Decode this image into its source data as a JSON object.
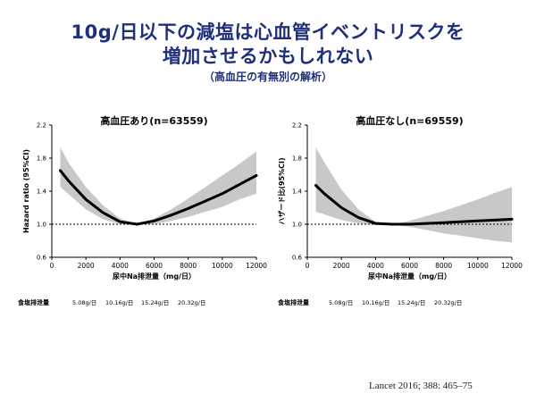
{
  "header": {
    "title_line1": "10g/日以下の減塩は心血管イベントリスクを",
    "title_line2": "増加させるかもしれない",
    "subtitle": "（高血圧の有無別の解析）"
  },
  "citation": "Lancet 2016; 388: 465–75",
  "colors": {
    "title": "#1f2f7a",
    "band": "#c8c8c8",
    "line": "#000000"
  },
  "chart_data": [
    {
      "type": "line",
      "title": "高血圧あり(n=63559)",
      "xlabel": "尿中Na排泄量（mg/日）",
      "ylabel": "Hazard ratio (95%CI)",
      "xlim": [
        0,
        12000
      ],
      "ylim": [
        0.6,
        2.2
      ],
      "xticks": [
        0,
        2000,
        4000,
        6000,
        8000,
        10000,
        12000
      ],
      "yticks": [
        0.6,
        1.0,
        1.4,
        1.8,
        2.2
      ],
      "ytick_labels": [
        "0.6",
        "1.0",
        "1.4",
        "1.8",
        "2.2"
      ],
      "reference_line": 1.0,
      "salt_label": "食塩排泄量",
      "salt_ticks": [
        "5.08g/日",
        "10.16g/日",
        "15.24g/日",
        "20.32g/日"
      ],
      "series": [
        {
          "x": [
            500,
            1000,
            2000,
            3000,
            4000,
            5000,
            6000,
            7000,
            8000,
            9000,
            10000,
            11000,
            12000
          ],
          "y": [
            1.65,
            1.52,
            1.3,
            1.14,
            1.03,
            1.0,
            1.04,
            1.11,
            1.19,
            1.28,
            1.37,
            1.48,
            1.59
          ],
          "lower": [
            1.45,
            1.36,
            1.18,
            1.06,
            1.0,
            1.0,
            1.0,
            1.04,
            1.09,
            1.15,
            1.21,
            1.3,
            1.37
          ],
          "upper": [
            1.93,
            1.74,
            1.45,
            1.23,
            1.07,
            1.0,
            1.07,
            1.18,
            1.31,
            1.45,
            1.59,
            1.73,
            1.88
          ]
        }
      ]
    },
    {
      "type": "line",
      "title": "高血圧なし(n=69559)",
      "xlabel": "尿中Na排泄量（mg/日）",
      "ylabel": "ハザード比(95%CI)",
      "xlim": [
        0,
        12000
      ],
      "ylim": [
        0.6,
        2.2
      ],
      "xticks": [
        0,
        2000,
        4000,
        6000,
        8000,
        10000,
        12000
      ],
      "yticks": [
        0.6,
        1.0,
        1.4,
        1.8,
        2.2
      ],
      "ytick_labels": [
        "0.6",
        "1.0",
        "1.4",
        "1.8",
        "2.2"
      ],
      "reference_line": 1.0,
      "salt_label": "食塩排泄量",
      "salt_ticks": [
        "5.08g/日",
        "10.16g/日",
        "15.24g/日",
        "20.32g/日"
      ],
      "series": [
        {
          "x": [
            500,
            1000,
            2000,
            3000,
            4000,
            5000,
            6000,
            7000,
            8000,
            9000,
            10000,
            11000,
            12000
          ],
          "y": [
            1.47,
            1.37,
            1.2,
            1.08,
            1.01,
            1.0,
            1.0,
            1.01,
            1.02,
            1.03,
            1.04,
            1.05,
            1.06
          ],
          "lower": [
            1.15,
            1.12,
            1.05,
            1.01,
            0.99,
            0.99,
            0.97,
            0.93,
            0.89,
            0.86,
            0.83,
            0.8,
            0.78
          ],
          "upper": [
            1.93,
            1.75,
            1.42,
            1.18,
            1.03,
            1.0,
            1.04,
            1.1,
            1.16,
            1.23,
            1.3,
            1.38,
            1.45
          ]
        }
      ]
    }
  ]
}
